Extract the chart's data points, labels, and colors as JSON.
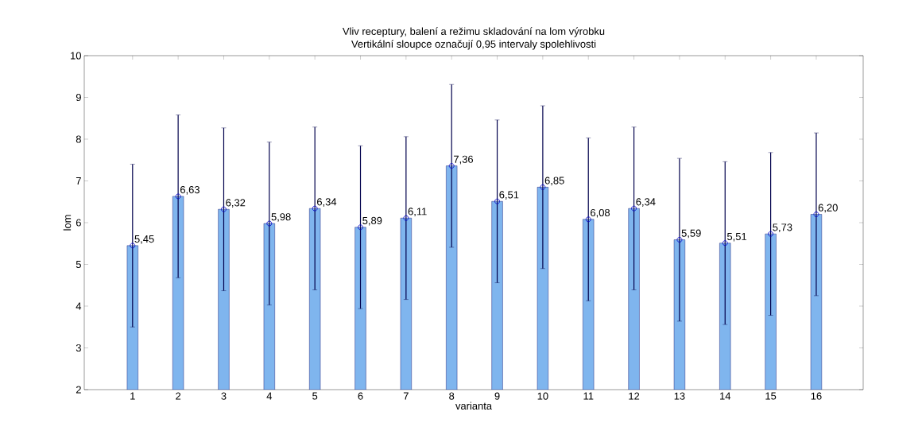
{
  "chart_data": {
    "type": "bar",
    "title": "Vliv receptury, balení a režimu skladování na lom výrobku",
    "subtitle": "Vertikální sloupce označují 0,95 intervaly spolehlivosti",
    "xlabel": "varianta",
    "ylabel": "lom",
    "categories": [
      "1",
      "2",
      "3",
      "4",
      "5",
      "6",
      "7",
      "8",
      "9",
      "10",
      "11",
      "12",
      "13",
      "14",
      "15",
      "16"
    ],
    "series": [
      {
        "type": "bar",
        "color": "#7fb5ee",
        "values": [
          5.45,
          6.63,
          6.32,
          5.98,
          6.34,
          5.89,
          6.11,
          7.36,
          6.51,
          6.85,
          6.08,
          6.34,
          5.59,
          5.51,
          5.73,
          6.2
        ],
        "value_labels": [
          "5,45",
          "6,63",
          "6,32",
          "5,98",
          "6,34",
          "5,89",
          "6,11",
          "7,36",
          "6,51",
          "6,85",
          "6,08",
          "6,34",
          "5,59",
          "5,51",
          "5,73",
          "6,20"
        ],
        "errors": [
          1.95,
          1.95,
          1.95,
          1.95,
          1.95,
          1.95,
          1.95,
          1.95,
          1.95,
          1.95,
          1.95,
          1.95,
          1.95,
          1.95,
          1.95,
          1.95
        ]
      },
      {
        "type": "scatter",
        "color": "#0000cc",
        "x": [
          "1",
          "2",
          "3",
          "4",
          "5",
          "6",
          "7",
          "8",
          "9",
          "10",
          "11",
          "12",
          "13",
          "14",
          "15",
          "16"
        ],
        "values": [
          5.45,
          6.63,
          6.32,
          5.98,
          6.34,
          5.89,
          6.11,
          7.36,
          6.51,
          6.85,
          6.08,
          6.34,
          5.59,
          5.51,
          5.73,
          6.2
        ]
      }
    ],
    "marker": "circle",
    "ylim": [
      2,
      10
    ],
    "yticks": [
      2,
      3,
      4,
      5,
      6,
      7,
      8,
      9,
      10
    ],
    "grid": false
  }
}
